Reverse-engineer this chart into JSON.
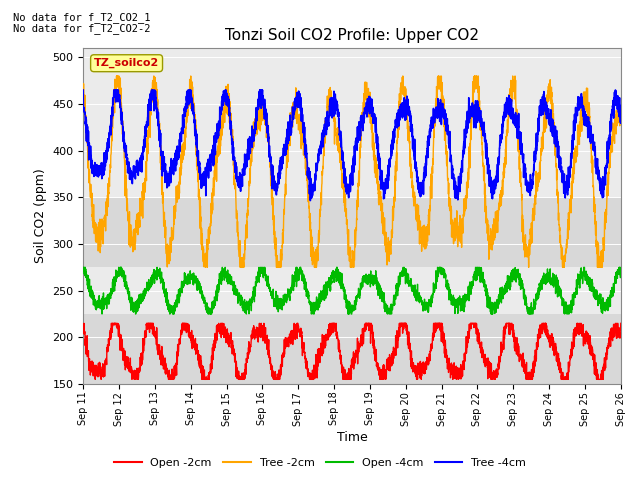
{
  "title": "Tonzi Soil CO2 Profile: Upper CO2",
  "xlabel": "Time",
  "ylabel": "Soil CO2 (ppm)",
  "ylim": [
    150,
    510
  ],
  "yticks": [
    150,
    200,
    250,
    300,
    350,
    400,
    450,
    500
  ],
  "note_line1": "No data for f_T2_CO2_1",
  "note_line2": "No data for f_T2_CO2-2",
  "legend_label": "TZ_soilco2",
  "series": {
    "open_2cm": {
      "color": "#FF0000",
      "label": "Open -2cm"
    },
    "tree_2cm": {
      "color": "#FFA500",
      "label": "Tree -2cm"
    },
    "open_4cm": {
      "color": "#00BB00",
      "label": "Open -4cm"
    },
    "tree_4cm": {
      "color": "#0000FF",
      "label": "Tree -4cm"
    }
  },
  "x_start": 11,
  "x_end": 26,
  "n_points": 3000,
  "bg_color": "#e8e8e8",
  "xtick_labels": [
    "Sep 11",
    "Sep 12",
    "Sep 13",
    "Sep 14",
    "Sep 15",
    "Sep 16",
    "Sep 17",
    "Sep 18",
    "Sep 19",
    "Sep 20",
    "Sep 21",
    "Sep 22",
    "Sep 23",
    "Sep 24",
    "Sep 25",
    "Sep 26"
  ],
  "xtick_positions": [
    11,
    12,
    13,
    14,
    15,
    16,
    17,
    18,
    19,
    20,
    21,
    22,
    23,
    24,
    25,
    26
  ]
}
